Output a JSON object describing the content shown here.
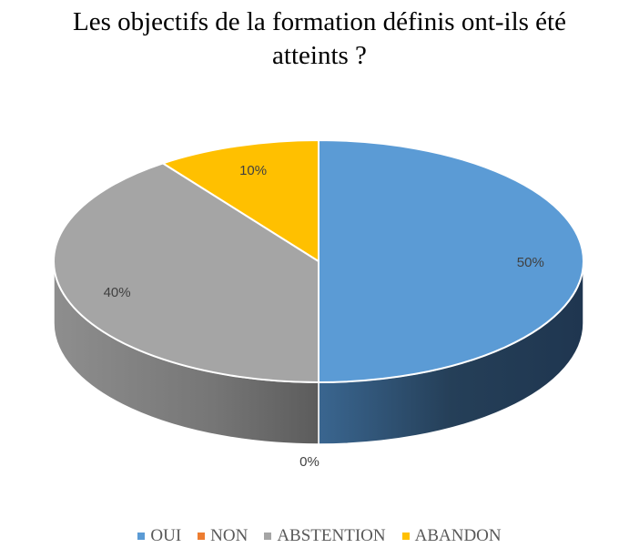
{
  "chart_data": {
    "type": "pie",
    "title_lines": [
      "Les objectifs de la formation définis ont-ils été",
      "atteints ?"
    ],
    "slices": [
      {
        "label": "OUI",
        "value": 50,
        "display": "50%",
        "color": "#5B9BD5",
        "side": "#2C4A66"
      },
      {
        "label": "NON",
        "value": 0,
        "display": "0%",
        "color": "#ED7D31",
        "side": "#8A4A1D"
      },
      {
        "label": "ABSTENTION",
        "value": 40,
        "display": "40%",
        "color": "#A5A5A5",
        "side": "#6E6E6E"
      },
      {
        "label": "ABANDON",
        "value": 10,
        "display": "10%",
        "color": "#FFC000",
        "side": "#B38700"
      }
    ],
    "legend_position": "bottom"
  }
}
